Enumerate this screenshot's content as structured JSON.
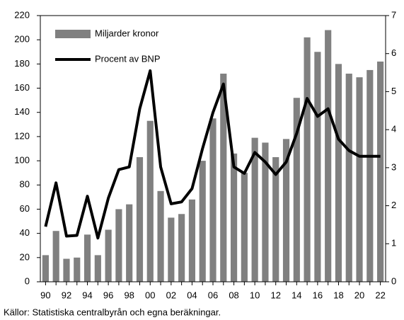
{
  "chart_data": {
    "type": "bar",
    "source": "Källor: Statistiska centralbyrån och egna beräkningar.",
    "categories": [
      "90",
      null,
      "92",
      null,
      "94",
      null,
      "96",
      null,
      "98",
      null,
      "00",
      null,
      "02",
      null,
      "04",
      null,
      "06",
      null,
      "08",
      null,
      "10",
      null,
      "12",
      null,
      "14",
      null,
      "16",
      null,
      "18",
      null,
      "20",
      null,
      "22"
    ],
    "series": [
      {
        "name": "Miljarder kronor",
        "type": "bar",
        "color": "#808080",
        "values": [
          22,
          42,
          19,
          20,
          39,
          22,
          43,
          60,
          64,
          103,
          133,
          75,
          53,
          56,
          68,
          100,
          135,
          172,
          106,
          90,
          119,
          115,
          103,
          118,
          152,
          202,
          190,
          208,
          180,
          172,
          169,
          175,
          182
        ]
      },
      {
        "name": "Procent av BNP",
        "type": "line",
        "axis": "y2",
        "color": "#000000",
        "values": [
          1.45,
          2.6,
          1.2,
          1.22,
          2.25,
          1.15,
          2.2,
          2.95,
          3.02,
          4.55,
          5.55,
          3.02,
          2.05,
          2.1,
          2.45,
          3.5,
          4.45,
          5.2,
          3.02,
          2.85,
          3.4,
          3.15,
          2.82,
          3.15,
          3.9,
          4.82,
          4.35,
          4.55,
          3.75,
          3.45,
          3.3,
          3.3,
          3.3
        ]
      }
    ],
    "ylim": [
      0,
      220
    ],
    "yticks": [
      0,
      20,
      40,
      60,
      80,
      100,
      120,
      140,
      160,
      180,
      200,
      220
    ],
    "y2lim": [
      0,
      7
    ],
    "y2ticks": [
      0,
      1,
      2,
      3,
      4,
      5,
      6,
      7
    ],
    "legend": "upper left"
  }
}
